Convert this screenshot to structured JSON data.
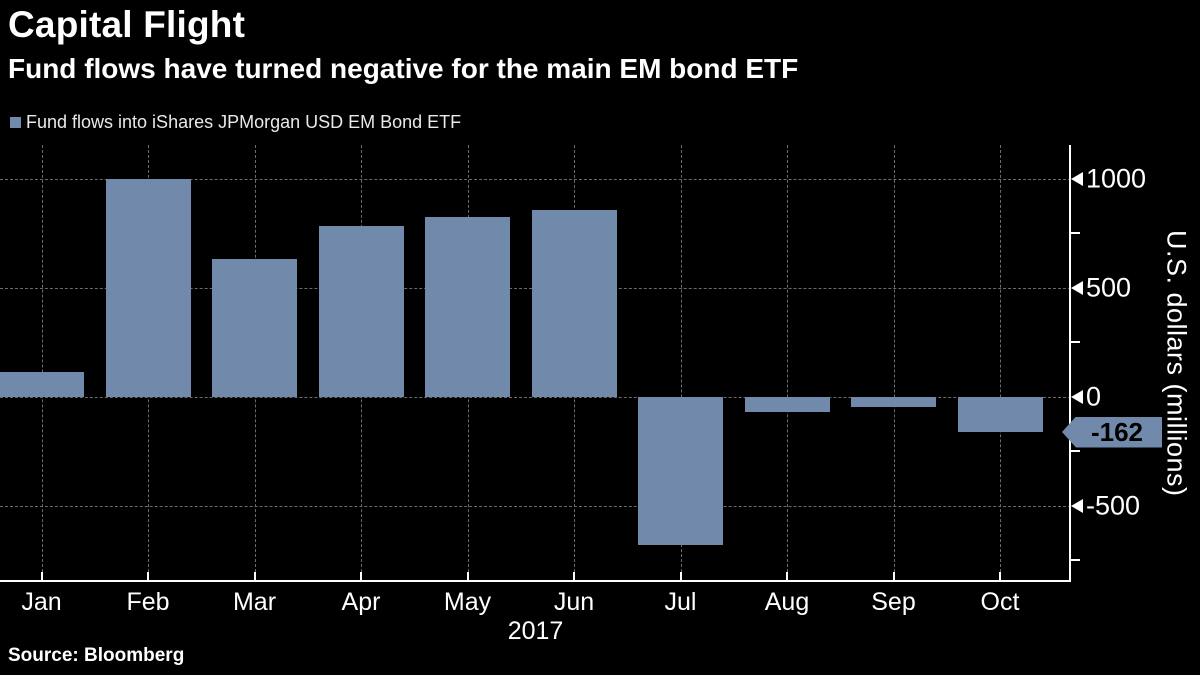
{
  "title": "Capital Flight",
  "subtitle": "Fund flows have turned negative for the main EM bond ETF",
  "legend": {
    "label": "Fund flows into iShares JPMorgan USD EM Bond ETF"
  },
  "source": "Source: Bloomberg",
  "y_axis_title": "U.S. dollars (millions)",
  "year_label": "2017",
  "callout": {
    "label": "-162",
    "value": -162
  },
  "colors": {
    "background": "#000000",
    "bar": "#7189ab",
    "grid": "#6b6b6b",
    "axis": "#ffffff",
    "text": "#ffffff",
    "callout_bg": "#7189ab",
    "callout_text": "#000000"
  },
  "chart_data": {
    "type": "bar",
    "title": "Fund flows into iShares JPMorgan USD EM Bond ETF",
    "categories": [
      "Jan",
      "Feb",
      "Mar",
      "Apr",
      "May",
      "Jun",
      "Jul",
      "Aug",
      "Sep",
      "Oct"
    ],
    "values": [
      113,
      1000,
      630,
      785,
      825,
      855,
      -680,
      -70,
      -45,
      -162
    ],
    "xlabel": "2017",
    "ylabel": "U.S. dollars (millions)",
    "ylim": [
      -850,
      1155
    ],
    "yticks_major": [
      1000,
      500,
      0,
      -500
    ],
    "yticks_minor": [
      750,
      250,
      -250,
      -750
    ],
    "grid": true,
    "legend_position": "top-left",
    "zero_line": 0
  }
}
